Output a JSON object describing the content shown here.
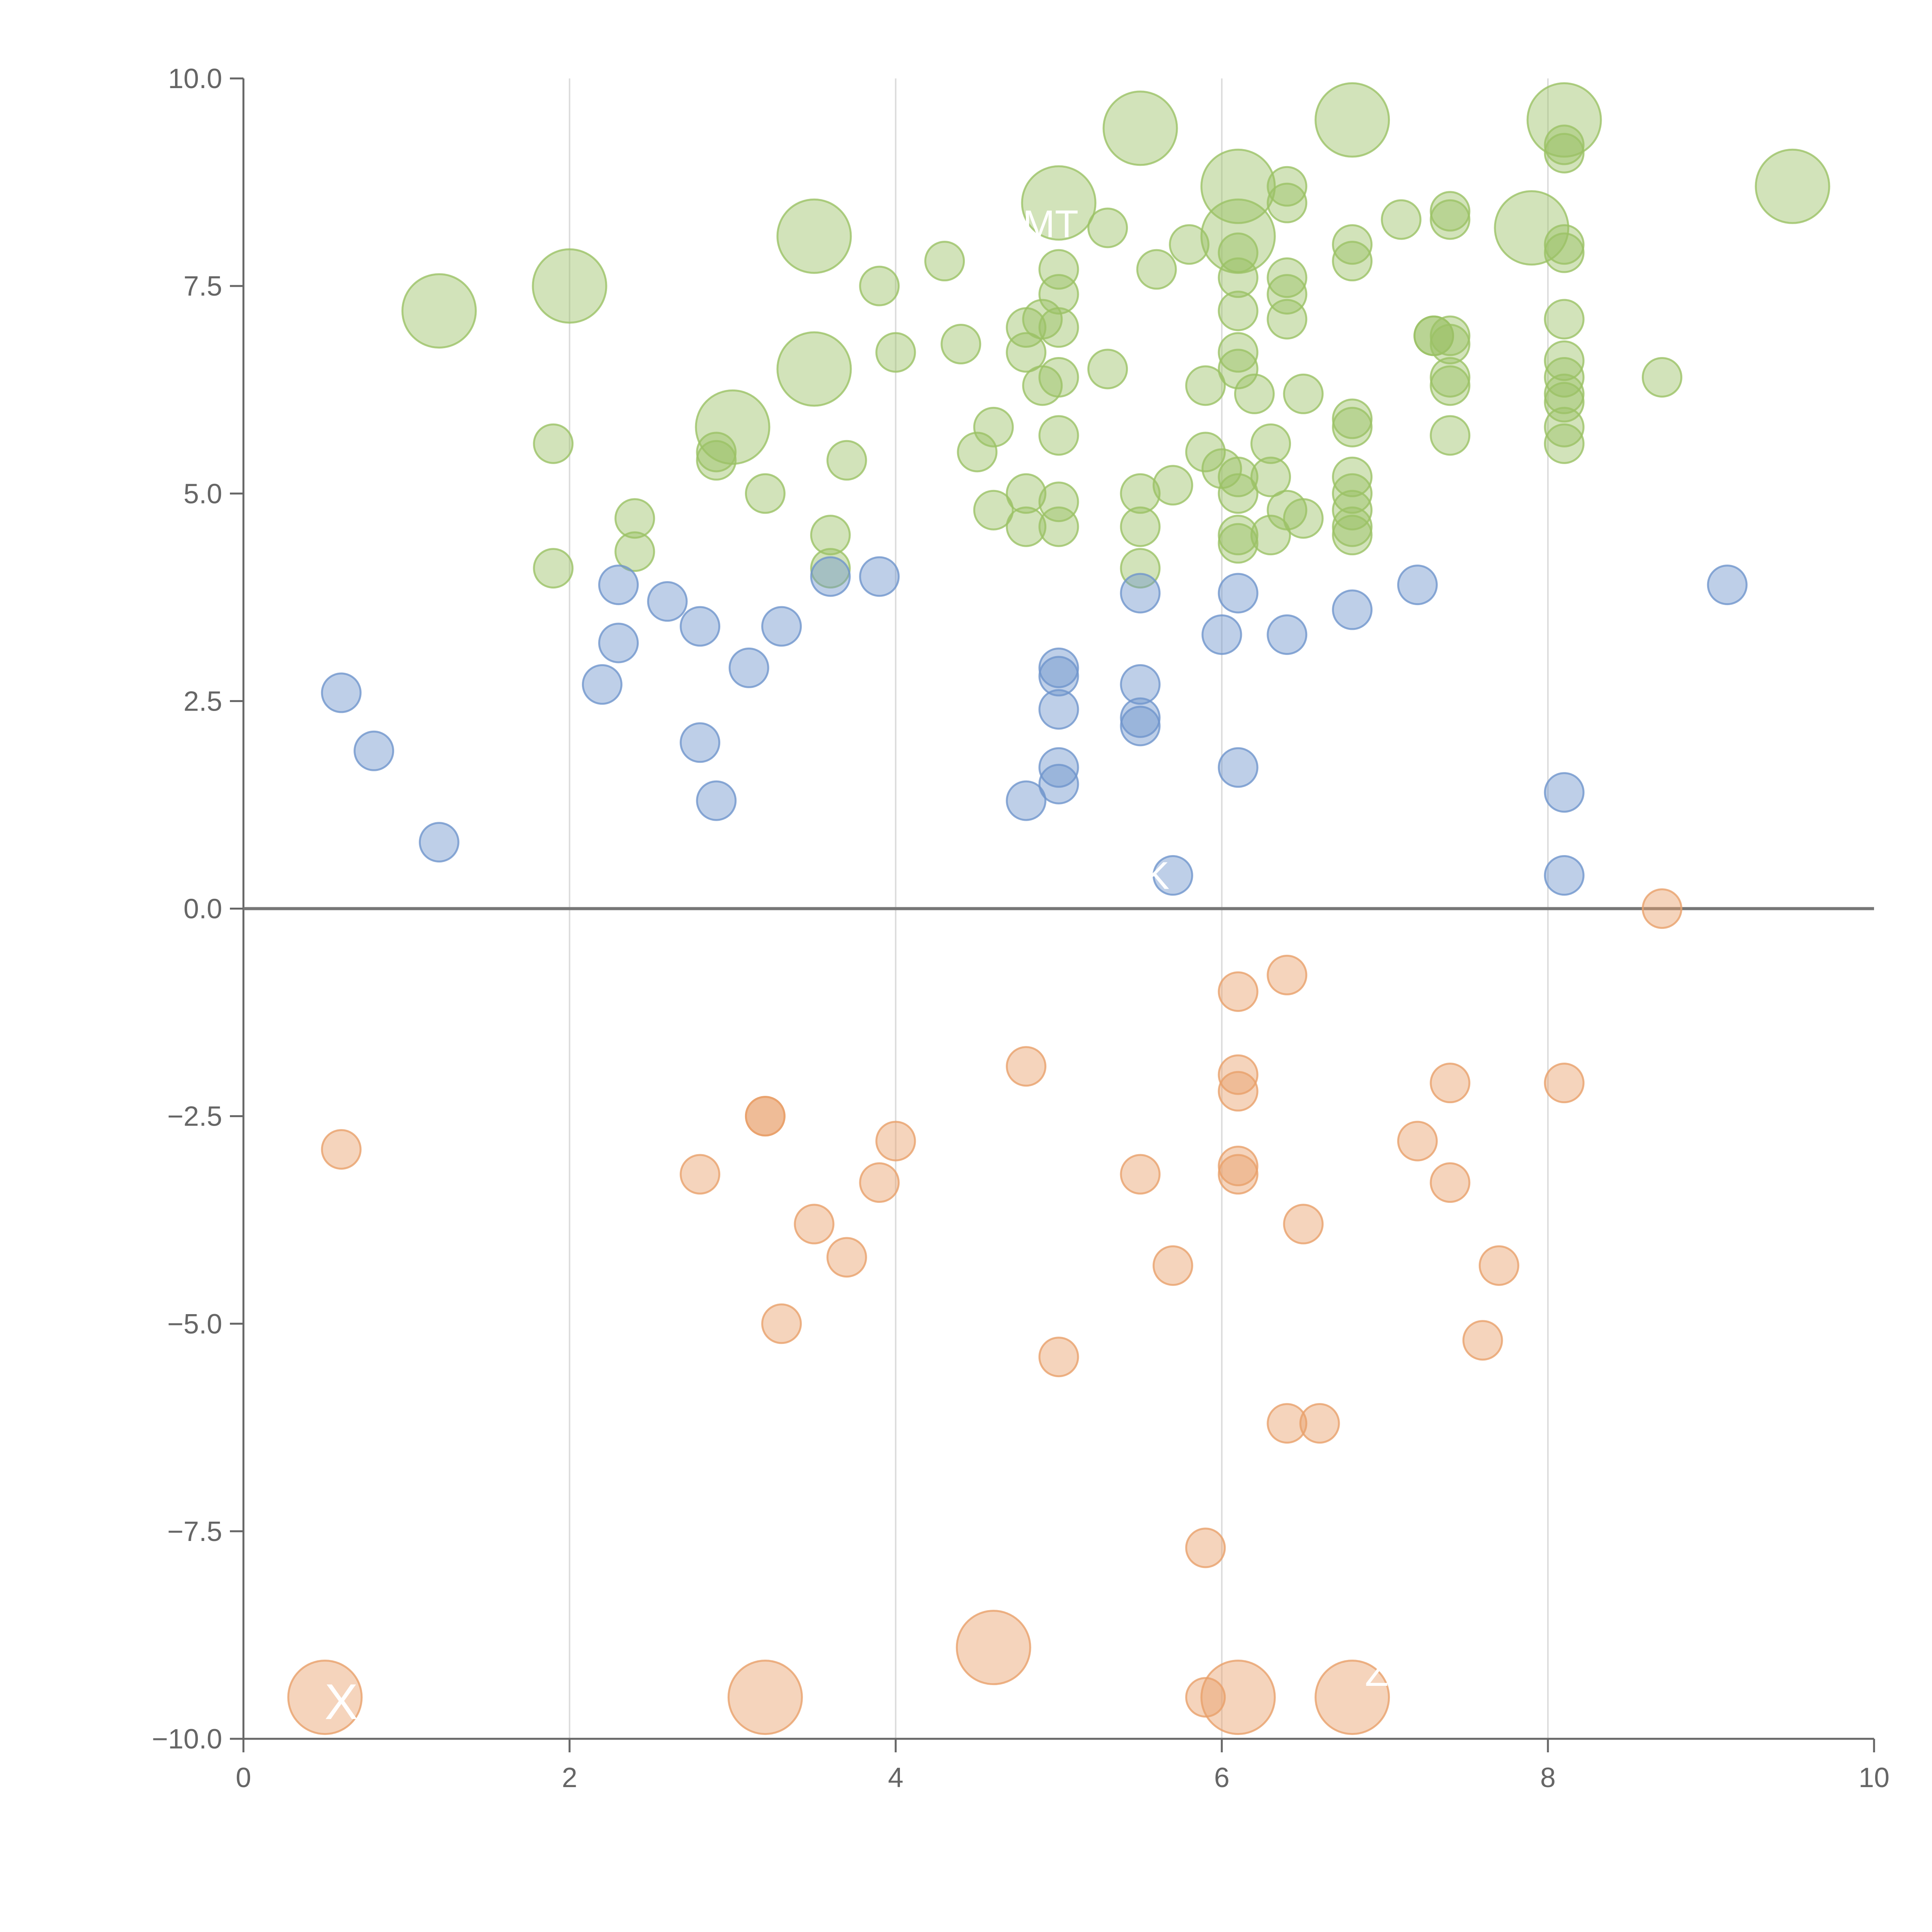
{
  "chart_data": {
    "type": "scatter",
    "title": "",
    "xlabel": "",
    "ylabel": "",
    "xlim": [
      0,
      10
    ],
    "ylim": [
      -10,
      10
    ],
    "x_ticks": [
      "0",
      "2",
      "4",
      "6",
      "8",
      "10"
    ],
    "y_ticks": [
      "10.0",
      "7.5",
      "5.0",
      "2.5",
      "0.0",
      "−2.5",
      "−5.0",
      "−7.5",
      "−10.0"
    ],
    "x_tick_values": [
      0,
      2,
      4,
      6,
      8,
      10
    ],
    "y_tick_values": [
      10,
      7.5,
      5,
      2.5,
      0,
      -2.5,
      -5,
      -7.5,
      -10
    ],
    "grid": "vertical lines at x ticks",
    "reference_line": {
      "y": 0
    },
    "legend": "none",
    "colors": {
      "green": "#9bc265",
      "blue": "#6f95cc",
      "orange": "#e8a06a",
      "axis": "#666666",
      "grid": "#dddddd",
      "zero_line": "#777777"
    },
    "series": [
      {
        "color": "#9bc265",
        "points": [
          [
            1.2,
            7.2,
            "large"
          ],
          [
            2.0,
            7.5,
            "large"
          ],
          [
            3.0,
            5.8,
            "large"
          ],
          [
            3.5,
            8.1,
            "large"
          ],
          [
            3.5,
            6.5,
            "large"
          ],
          [
            5.0,
            8.5,
            "large"
          ],
          [
            5.5,
            9.4,
            "large"
          ],
          [
            6.1,
            8.7,
            "large"
          ],
          [
            6.1,
            8.1,
            "large"
          ],
          [
            6.8,
            9.5,
            "large"
          ],
          [
            7.9,
            8.2,
            "large"
          ],
          [
            8.1,
            9.5,
            "large"
          ],
          [
            9.5,
            8.7,
            "large"
          ],
          [
            1.9,
            5.6,
            "small"
          ],
          [
            1.9,
            4.1,
            "small"
          ],
          [
            2.4,
            4.7,
            "small"
          ],
          [
            2.4,
            4.3,
            "small"
          ],
          [
            2.9,
            5.5,
            "small"
          ],
          [
            2.9,
            5.4,
            "small"
          ],
          [
            3.2,
            5.0,
            "small"
          ],
          [
            3.6,
            4.5,
            "small"
          ],
          [
            3.6,
            4.1,
            "small"
          ],
          [
            3.7,
            5.4,
            "small"
          ],
          [
            3.9,
            7.5,
            "small"
          ],
          [
            4.0,
            6.7,
            "small"
          ],
          [
            4.3,
            7.8,
            "small"
          ],
          [
            4.4,
            6.8,
            "small"
          ],
          [
            4.5,
            5.5,
            "small"
          ],
          [
            4.6,
            5.8,
            "small"
          ],
          [
            4.6,
            4.8,
            "small"
          ],
          [
            4.8,
            7.0,
            "small"
          ],
          [
            4.8,
            6.7,
            "small"
          ],
          [
            4.8,
            5.0,
            "small"
          ],
          [
            4.8,
            4.6,
            "small"
          ],
          [
            4.9,
            7.1,
            "small"
          ],
          [
            4.9,
            6.3,
            "small"
          ],
          [
            5.0,
            7.7,
            "small"
          ],
          [
            5.0,
            7.4,
            "small"
          ],
          [
            5.0,
            7.0,
            "small"
          ],
          [
            5.0,
            6.4,
            "small"
          ],
          [
            5.0,
            5.7,
            "small"
          ],
          [
            5.0,
            4.9,
            "small"
          ],
          [
            5.0,
            4.6,
            "small"
          ],
          [
            5.3,
            8.2,
            "small"
          ],
          [
            5.3,
            6.5,
            "small"
          ],
          [
            5.5,
            5.0,
            "small"
          ],
          [
            5.5,
            4.6,
            "small"
          ],
          [
            5.5,
            4.1,
            "small"
          ],
          [
            5.6,
            7.7,
            "small"
          ],
          [
            5.7,
            5.1,
            "small"
          ],
          [
            5.8,
            8.0,
            "small"
          ],
          [
            5.9,
            6.3,
            "small"
          ],
          [
            5.9,
            5.5,
            "small"
          ],
          [
            6.0,
            5.3,
            "small"
          ],
          [
            6.1,
            7.9,
            "small"
          ],
          [
            6.1,
            7.6,
            "small"
          ],
          [
            6.1,
            7.2,
            "small"
          ],
          [
            6.1,
            6.7,
            "small"
          ],
          [
            6.1,
            6.5,
            "small"
          ],
          [
            6.1,
            5.2,
            "small"
          ],
          [
            6.1,
            5.0,
            "small"
          ],
          [
            6.1,
            4.5,
            "small"
          ],
          [
            6.1,
            4.4,
            "small"
          ],
          [
            6.2,
            6.2,
            "small"
          ],
          [
            6.3,
            5.6,
            "small"
          ],
          [
            6.3,
            5.2,
            "small"
          ],
          [
            6.3,
            4.5,
            "small"
          ],
          [
            6.4,
            8.7,
            "small"
          ],
          [
            6.4,
            8.5,
            "small"
          ],
          [
            6.4,
            7.6,
            "small"
          ],
          [
            6.4,
            7.4,
            "small"
          ],
          [
            6.4,
            7.1,
            "small"
          ],
          [
            6.4,
            4.8,
            "small"
          ],
          [
            6.5,
            6.2,
            "small"
          ],
          [
            6.5,
            4.7,
            "small"
          ],
          [
            6.8,
            8.0,
            "small"
          ],
          [
            6.8,
            7.8,
            "small"
          ],
          [
            6.8,
            5.9,
            "small"
          ],
          [
            6.8,
            5.8,
            "small"
          ],
          [
            6.8,
            5.2,
            "small"
          ],
          [
            6.8,
            5.0,
            "small"
          ],
          [
            6.8,
            4.8,
            "small"
          ],
          [
            6.8,
            4.6,
            "small"
          ],
          [
            6.8,
            4.5,
            "small"
          ],
          [
            7.1,
            8.3,
            "small"
          ],
          [
            7.3,
            6.9,
            "small"
          ],
          [
            7.3,
            6.9,
            "small"
          ],
          [
            7.4,
            8.4,
            "small"
          ],
          [
            7.4,
            8.3,
            "small"
          ],
          [
            7.4,
            6.9,
            "small"
          ],
          [
            7.4,
            6.8,
            "small"
          ],
          [
            7.4,
            6.4,
            "small"
          ],
          [
            7.4,
            6.3,
            "small"
          ],
          [
            7.4,
            5.7,
            "small"
          ],
          [
            8.1,
            9.2,
            "small"
          ],
          [
            8.1,
            9.1,
            "small"
          ],
          [
            8.1,
            8.0,
            "small"
          ],
          [
            8.1,
            7.9,
            "small"
          ],
          [
            8.1,
            7.1,
            "small"
          ],
          [
            8.1,
            6.6,
            "small"
          ],
          [
            8.1,
            6.4,
            "small"
          ],
          [
            8.1,
            6.2,
            "small"
          ],
          [
            8.1,
            6.1,
            "small"
          ],
          [
            8.1,
            5.8,
            "small"
          ],
          [
            8.1,
            5.6,
            "small"
          ],
          [
            8.7,
            6.4,
            "small"
          ]
        ]
      },
      {
        "color": "#6f95cc",
        "points": [
          [
            0.6,
            2.6,
            "small"
          ],
          [
            0.8,
            1.9,
            "small"
          ],
          [
            1.2,
            0.8,
            "small"
          ],
          [
            2.2,
            2.7,
            "small"
          ],
          [
            2.3,
            3.9,
            "small"
          ],
          [
            2.3,
            3.2,
            "small"
          ],
          [
            2.6,
            3.7,
            "small"
          ],
          [
            2.8,
            3.4,
            "small"
          ],
          [
            2.8,
            2.0,
            "small"
          ],
          [
            2.9,
            1.3,
            "small"
          ],
          [
            3.1,
            2.9,
            "small"
          ],
          [
            3.3,
            3.4,
            "small"
          ],
          [
            3.6,
            4.0,
            "small"
          ],
          [
            3.9,
            4.0,
            "small"
          ],
          [
            4.8,
            1.3,
            "small"
          ],
          [
            5.0,
            2.9,
            "small"
          ],
          [
            5.0,
            2.8,
            "small"
          ],
          [
            5.0,
            2.4,
            "small"
          ],
          [
            5.0,
            1.7,
            "small"
          ],
          [
            5.0,
            1.5,
            "small"
          ],
          [
            5.5,
            3.8,
            "small"
          ],
          [
            5.5,
            2.7,
            "small"
          ],
          [
            5.5,
            2.3,
            "small"
          ],
          [
            5.5,
            2.2,
            "small"
          ],
          [
            5.7,
            0.4,
            "small"
          ],
          [
            6.0,
            3.3,
            "small"
          ],
          [
            6.1,
            3.8,
            "small"
          ],
          [
            6.1,
            1.7,
            "small"
          ],
          [
            6.4,
            3.3,
            "small"
          ],
          [
            6.8,
            3.6,
            "small"
          ],
          [
            7.2,
            3.9,
            "small"
          ],
          [
            8.1,
            1.4,
            "small"
          ],
          [
            8.1,
            0.4,
            "small"
          ],
          [
            9.1,
            3.9,
            "small"
          ]
        ]
      },
      {
        "color": "#e8a06a",
        "points": [
          [
            0.6,
            -2.9,
            "small"
          ],
          [
            2.8,
            -3.2,
            "small"
          ],
          [
            3.2,
            -2.5,
            "small"
          ],
          [
            3.2,
            -2.5,
            "small"
          ],
          [
            3.3,
            -5.0,
            "small"
          ],
          [
            3.5,
            -3.8,
            "small"
          ],
          [
            3.7,
            -4.2,
            "small"
          ],
          [
            3.9,
            -3.3,
            "small"
          ],
          [
            4.0,
            -2.8,
            "small"
          ],
          [
            4.8,
            -1.9,
            "small"
          ],
          [
            5.0,
            -5.4,
            "small"
          ],
          [
            5.5,
            -3.2,
            "small"
          ],
          [
            5.7,
            -4.3,
            "small"
          ],
          [
            5.9,
            -7.7,
            "small"
          ],
          [
            5.9,
            -9.5,
            "small"
          ],
          [
            6.1,
            -1.0,
            "small"
          ],
          [
            6.1,
            -2.0,
            "small"
          ],
          [
            6.1,
            -2.2,
            "small"
          ],
          [
            6.1,
            -3.1,
            "small"
          ],
          [
            6.1,
            -3.2,
            "small"
          ],
          [
            6.4,
            -0.8,
            "small"
          ],
          [
            6.4,
            -6.2,
            "small"
          ],
          [
            6.5,
            -3.8,
            "small"
          ],
          [
            6.6,
            -6.2,
            "small"
          ],
          [
            7.2,
            -2.8,
            "small"
          ],
          [
            7.4,
            -2.1,
            "small"
          ],
          [
            7.4,
            -3.3,
            "small"
          ],
          [
            7.6,
            -5.2,
            "small"
          ],
          [
            7.7,
            -4.3,
            "small"
          ],
          [
            8.1,
            -2.1,
            "small"
          ],
          [
            8.7,
            -0.0,
            "small"
          ],
          [
            0.5,
            -9.5,
            "large"
          ],
          [
            3.2,
            -9.5,
            "large"
          ],
          [
            4.6,
            -8.9,
            "large"
          ],
          [
            6.1,
            -9.5,
            "large"
          ],
          [
            6.8,
            -9.5,
            "large"
          ]
        ]
      }
    ],
    "annotations": [
      {
        "text": "MT",
        "x": 4.95,
        "y": 8.25,
        "size": "medium"
      },
      {
        "text": "X",
        "x": 0.6,
        "y": -9.55,
        "size": "large"
      },
      {
        "text": "K",
        "x": 5.6,
        "y": 0.4,
        "size": "medium"
      },
      {
        "text": "Z",
        "x": 6.95,
        "y": -9.2,
        "size": "medium"
      }
    ]
  }
}
